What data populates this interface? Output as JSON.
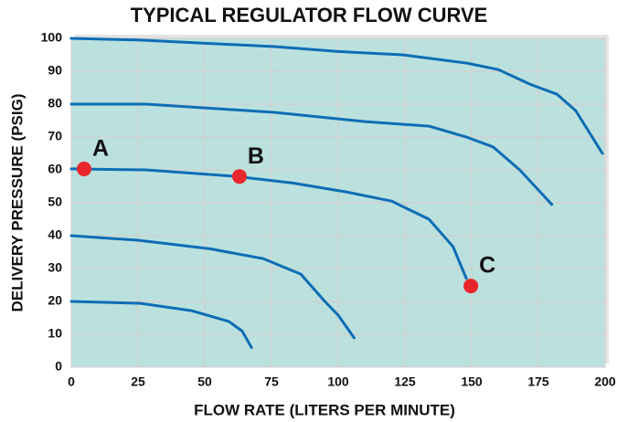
{
  "chart_data": {
    "type": "line",
    "title": "TYPICAL REGULATOR FLOW CURVE",
    "x_label": "FLOW RATE (LITERS PER MINUTE)",
    "y_label": "DELIVERY PRESSURE (PSIG)",
    "xlim": [
      0,
      200
    ],
    "ylim": [
      0,
      100
    ],
    "xticks": [
      0,
      25,
      50,
      75,
      100,
      125,
      150,
      175,
      200
    ],
    "yticks": [
      0,
      10,
      20,
      30,
      40,
      50,
      60,
      70,
      80,
      90,
      100
    ],
    "grid": true,
    "background": "#bbe1de",
    "series": [
      {
        "color": "#0d6db5",
        "x": [
          0,
          25,
          76,
          100,
          124,
          148,
          160,
          172,
          182,
          189,
          199
        ],
        "values": [
          100,
          99.5,
          97.5,
          96,
          95,
          92.5,
          90.5,
          86,
          83,
          78,
          65
        ]
      },
      {
        "color": "#0d6db5",
        "x": [
          0,
          28,
          76,
          110,
          134,
          148,
          158,
          168,
          175,
          180
        ],
        "values": [
          80,
          80,
          77.5,
          74.7,
          73.3,
          70,
          67,
          60,
          53.9,
          49.5
        ]
      },
      {
        "color": "#0d6db5",
        "x": [
          0,
          28,
          62,
          83,
          103,
          120,
          134,
          143,
          148
        ],
        "values": [
          60.3,
          60,
          58,
          56,
          53.3,
          50.5,
          45,
          36.7,
          27
        ]
      },
      {
        "color": "#0d6db5",
        "x": [
          0,
          25,
          52,
          72,
          86,
          95,
          100,
          106
        ],
        "values": [
          40,
          38.6,
          36,
          33,
          28.3,
          20,
          15.8,
          8.9
        ]
      },
      {
        "color": "#0d6db5",
        "x": [
          0,
          26,
          45,
          59,
          64,
          67.5
        ],
        "values": [
          20,
          19.4,
          17.2,
          13.9,
          11,
          6
        ]
      }
    ],
    "points": [
      {
        "label": "A",
        "x": 4.8,
        "y": 60.3
      },
      {
        "label": "B",
        "x": 63,
        "y": 58
      },
      {
        "label": "C",
        "x": 149.7,
        "y": 24.7
      }
    ],
    "point_color": "#e8262b"
  }
}
